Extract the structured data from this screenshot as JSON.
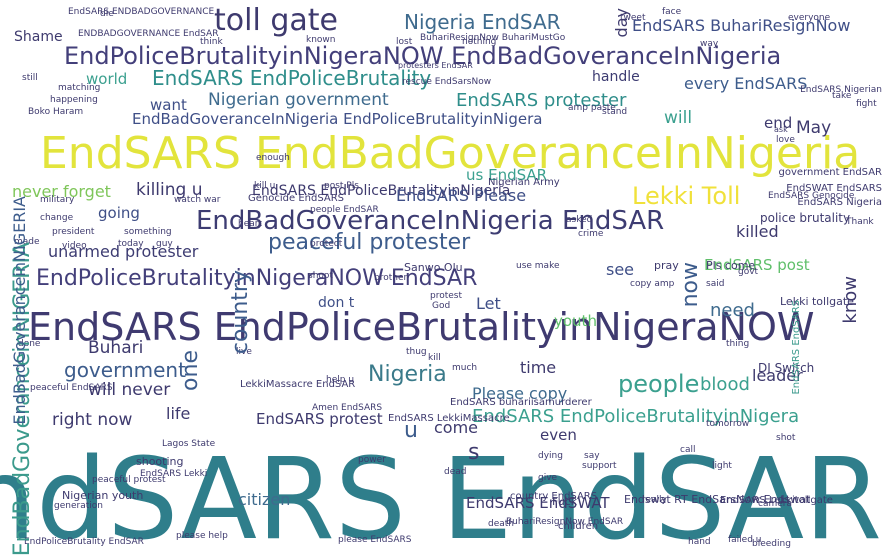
{
  "cloud": {
    "palette": {
      "dark": "#3e3a6e",
      "indigo": "#433f7a",
      "teal": "#2b7a87",
      "teal_light": "#3ba08f",
      "green": "#5fbf6a",
      "lime": "#b9dc3a",
      "yellow": "#e6e23a",
      "light": "#9fd5c5"
    },
    "words": [
      {
        "text": "EndSARS EndSAR",
        "color": "#2f7e8b",
        "vertical": false
      },
      {
        "text": "EndSARS EndBadGoveranceInNigeria",
        "color": "#e2e43c",
        "vertical": false
      },
      {
        "text": "EndSARS EndPoliceBrutalityinNigeraNOW",
        "color": "#3f3a70",
        "vertical": false
      },
      {
        "text": "EndPoliceBrutalityinNigeraNOW EndBadGoveranceInNigeria",
        "color": "#433f7a",
        "vertical": false
      },
      {
        "text": "EndBadGoveranceInNigeria EndSAR",
        "color": "#3d3c72",
        "vertical": false
      },
      {
        "text": "EndPoliceBrutalityinNigeraNOW EndSAR",
        "color": "#433f7a",
        "vertical": false
      },
      {
        "text": "toll gate",
        "color": "#3e3a6e",
        "vertical": false
      },
      {
        "text": "Nigeria EndSAR",
        "color": "#3f6b8e",
        "vertical": false
      },
      {
        "text": "EndSARS EndPoliceBrutality",
        "color": "#2f8e8b",
        "vertical": false
      },
      {
        "text": "EndSARS BuhariResignNow",
        "color": "#3f4f87",
        "vertical": false
      },
      {
        "text": "peaceful protester",
        "color": "#3d5c8c",
        "vertical": false
      },
      {
        "text": "Lekki Toll",
        "color": "#f0e13a",
        "vertical": false
      },
      {
        "text": "EndSARS protester",
        "color": "#2f8e8b",
        "vertical": false
      },
      {
        "text": "Nigerian government",
        "color": "#3f6b8e",
        "vertical": false
      },
      {
        "text": "EndBadGoveranceInNigeria EndPoliceBrutalityinNigera",
        "color": "#3f4f87",
        "vertical": false
      },
      {
        "text": "EndSARS EndPoliceBrutalityinNigeria",
        "color": "#3e3a6e",
        "vertical": false
      },
      {
        "text": "EndSARS EndPoliceBrutalityinNigera",
        "color": "#3ba08f",
        "vertical": false
      },
      {
        "text": "Nigeria",
        "color": "#3a7a8a",
        "vertical": false
      },
      {
        "text": "people",
        "color": "#3ba08f",
        "vertical": false
      },
      {
        "text": "government",
        "color": "#3d5c8c",
        "vertical": false
      },
      {
        "text": "will never",
        "color": "#3e3a6e",
        "vertical": false
      },
      {
        "text": "unarmed protester",
        "color": "#3d3c72",
        "vertical": false
      },
      {
        "text": "killing u",
        "color": "#3e3a6e",
        "vertical": false
      },
      {
        "text": "EndSARS Please",
        "color": "#3f4f87",
        "vertical": false
      },
      {
        "text": "Shame",
        "color": "#3e3a6e",
        "vertical": false
      },
      {
        "text": "world",
        "color": "#3ba08f",
        "vertical": false
      },
      {
        "text": "want",
        "color": "#3f4f87",
        "vertical": false
      },
      {
        "text": "handle",
        "color": "#3d3c72",
        "vertical": false
      },
      {
        "text": "every EndSARS",
        "color": "#3d5c8c",
        "vertical": false
      },
      {
        "text": "will",
        "color": "#3ba08f",
        "vertical": false
      },
      {
        "text": "end",
        "color": "#3e3a6e",
        "vertical": false
      },
      {
        "text": "May",
        "color": "#3e3a6e",
        "vertical": false
      },
      {
        "text": "never forget",
        "color": "#7fc65a",
        "vertical": false
      },
      {
        "text": "us EndSAR",
        "color": "#3ba08f",
        "vertical": false
      },
      {
        "text": "going",
        "color": "#3f4f87",
        "vertical": false
      },
      {
        "text": "killed",
        "color": "#3e3a6e",
        "vertical": false
      },
      {
        "text": "EndSARS post",
        "color": "#5fbf6a",
        "vertical": false
      },
      {
        "text": "see",
        "color": "#3f4f87",
        "vertical": false
      },
      {
        "text": "Let",
        "color": "#3f4f87",
        "vertical": false
      },
      {
        "text": "don t",
        "color": "#3f4f87",
        "vertical": false
      },
      {
        "text": "need",
        "color": "#3f6b8e",
        "vertical": false
      },
      {
        "text": "youth",
        "color": "#5fbf6a",
        "vertical": false
      },
      {
        "text": "Buhari",
        "color": "#3e3a6e",
        "vertical": false
      },
      {
        "text": "blood",
        "color": "#3ba08f",
        "vertical": false
      },
      {
        "text": "time",
        "color": "#3e3a6e",
        "vertical": false
      },
      {
        "text": "leader",
        "color": "#3e3a6e",
        "vertical": false
      },
      {
        "text": "Please copy",
        "color": "#3f6b8e",
        "vertical": false
      },
      {
        "text": "right now",
        "color": "#3e3a6e",
        "vertical": false
      },
      {
        "text": "life",
        "color": "#3e3a6e",
        "vertical": false
      },
      {
        "text": "EndSARS protest",
        "color": "#3e3a6e",
        "vertical": false
      },
      {
        "text": "come",
        "color": "#3e3a6e",
        "vertical": false
      },
      {
        "text": "even",
        "color": "#3e3a6e",
        "vertical": false
      },
      {
        "text": "citizen",
        "color": "#3f6b8e",
        "vertical": false
      },
      {
        "text": "EndSARS EndSWAT",
        "color": "#3e3a6e",
        "vertical": false
      },
      {
        "text": "DJ Switch",
        "color": "#3e3a6e",
        "vertical": false
      },
      {
        "text": "police brutality",
        "color": "#3e3a6e",
        "vertical": false
      },
      {
        "text": "pray",
        "color": "#3e3a6e",
        "vertical": false
      },
      {
        "text": "Pls come",
        "color": "#3e3a6e",
        "vertical": false
      },
      {
        "text": "EndSARS Nigeria",
        "color": "#3e3a6e",
        "vertical": false
      },
      {
        "text": "EndSWAT EndSARS",
        "color": "#3e3a6e",
        "vertical": false
      },
      {
        "text": "government EndSAR",
        "color": "#3e3a6e",
        "vertical": false
      },
      {
        "text": "Lekki tollgate",
        "color": "#3e3a6e",
        "vertical": false
      },
      {
        "text": "Sanwo Olu",
        "color": "#3e3a6e",
        "vertical": false
      },
      {
        "text": "Nigerian Army",
        "color": "#3e3a6e",
        "vertical": false
      },
      {
        "text": "Genocide EndSARS",
        "color": "#3e3a6e",
        "vertical": false
      },
      {
        "text": "Boko Haram",
        "color": "#3e3a6e",
        "vertical": false
      },
      {
        "text": "EndSARS Genocide",
        "color": "#3e3a6e",
        "vertical": false
      },
      {
        "text": "EndSARS Lekki",
        "color": "#3e3a6e",
        "vertical": false
      },
      {
        "text": "peaceful protest",
        "color": "#3e3a6e",
        "vertical": false
      },
      {
        "text": "LekkiMassacre EndSAR",
        "color": "#3e3a6e",
        "vertical": false
      },
      {
        "text": "EndSARS buhariisamurderer",
        "color": "#3e3a6e",
        "vertical": false
      },
      {
        "text": "EndSARS LekkiMassacre",
        "color": "#3e3a6e",
        "vertical": false
      },
      {
        "text": "Nigerian youth",
        "color": "#3e3a6e",
        "vertical": false
      },
      {
        "text": "shooting",
        "color": "#3e3a6e",
        "vertical": false
      },
      {
        "text": "country EndSARS",
        "color": "#3e3a6e",
        "vertical": false
      },
      {
        "text": "Fuck",
        "color": "#3e3a6e",
        "vertical": false
      },
      {
        "text": "Endswat RT EndSarsNow Endswat",
        "color": "#3e3a6e",
        "vertical": false
      },
      {
        "text": "EndSARS Lekkitollgate",
        "color": "#3e3a6e",
        "vertical": false
      },
      {
        "text": "BuhariResignNow EndSAR",
        "color": "#3e3a6e",
        "vertical": false
      },
      {
        "text": "EndPoliceBrutality EndSAR",
        "color": "#3e3a6e",
        "vertical": false
      },
      {
        "text": "please help",
        "color": "#3e3a6e",
        "vertical": false
      },
      {
        "text": "please EndSARS",
        "color": "#3e3a6e",
        "vertical": false
      },
      {
        "text": "failed u",
        "color": "#3e3a6e",
        "vertical": false
      },
      {
        "text": "hand",
        "color": "#3e3a6e",
        "vertical": false
      },
      {
        "text": "bleeding",
        "color": "#3e3a6e",
        "vertical": false
      },
      {
        "text": "children",
        "color": "#3e3a6e",
        "vertical": false
      },
      {
        "text": "death",
        "color": "#3e3a6e",
        "vertical": false
      },
      {
        "text": "support",
        "color": "#3e3a6e",
        "vertical": false
      },
      {
        "text": "dead",
        "color": "#3e3a6e",
        "vertical": false
      },
      {
        "text": "give",
        "color": "#3e3a6e",
        "vertical": false
      },
      {
        "text": "call",
        "color": "#3e3a6e",
        "vertical": false
      },
      {
        "text": "light",
        "color": "#3e3a6e",
        "vertical": false
      },
      {
        "text": "camera",
        "color": "#3e3a6e",
        "vertical": false
      },
      {
        "text": "everyone",
        "color": "#3e3a6e",
        "vertical": false
      },
      {
        "text": "face",
        "color": "#3e3a6e",
        "vertical": false
      },
      {
        "text": "tweet",
        "color": "#3e3a6e",
        "vertical": false
      },
      {
        "text": "EndSARS Nigerian",
        "color": "#3e3a6e",
        "vertical": false
      },
      {
        "text": "EndSARS ENDBADGOVERNANCE",
        "color": "#3e3a6e",
        "vertical": false
      },
      {
        "text": "ENDBADGOVERNANCE EndSAR",
        "color": "#3e3a6e",
        "vertical": false
      },
      {
        "text": "protesters EndSAR",
        "color": "#3e3a6e",
        "vertical": false
      },
      {
        "text": "rescue EndSarsNow",
        "color": "#3e3a6e",
        "vertical": false
      },
      {
        "text": "BuhariResignNow BuhariMustGo",
        "color": "#3e3a6e",
        "vertical": false
      },
      {
        "text": "amp paste",
        "color": "#3e3a6e",
        "vertical": false
      },
      {
        "text": "take",
        "color": "#3e3a6e",
        "vertical": false
      },
      {
        "text": "love",
        "color": "#3e3a6e",
        "vertical": false
      },
      {
        "text": "ask",
        "color": "#3e3a6e",
        "vertical": false
      },
      {
        "text": "enough",
        "color": "#3e3a6e",
        "vertical": false
      },
      {
        "text": "kill u",
        "color": "#3e3a6e",
        "vertical": false
      },
      {
        "text": "post Pls",
        "color": "#3e3a6e",
        "vertical": false
      },
      {
        "text": "people EndSAR",
        "color": "#3e3a6e",
        "vertical": false
      },
      {
        "text": "military",
        "color": "#3e3a6e",
        "vertical": false
      },
      {
        "text": "change",
        "color": "#3e3a6e",
        "vertical": false
      },
      {
        "text": "president",
        "color": "#3e3a6e",
        "vertical": false
      },
      {
        "text": "something",
        "color": "#3e3a6e",
        "vertical": false
      },
      {
        "text": "video",
        "color": "#3e3a6e",
        "vertical": false
      },
      {
        "text": "today",
        "color": "#3e3a6e",
        "vertical": false
      },
      {
        "text": "guy",
        "color": "#3e3a6e",
        "vertical": false
      },
      {
        "text": "heart",
        "color": "#3e3a6e",
        "vertical": false
      },
      {
        "text": "protect",
        "color": "#3e3a6e",
        "vertical": false
      },
      {
        "text": "shoot",
        "color": "#3e3a6e",
        "vertical": false
      },
      {
        "text": "brother",
        "color": "#3e3a6e",
        "vertical": false
      },
      {
        "text": "protest",
        "color": "#3e3a6e",
        "vertical": false
      },
      {
        "text": "God",
        "color": "#3e3a6e",
        "vertical": false
      },
      {
        "text": "copy amp",
        "color": "#3e3a6e",
        "vertical": false
      },
      {
        "text": "live",
        "color": "#3e3a6e",
        "vertical": false
      },
      {
        "text": "thing",
        "color": "#3e3a6e",
        "vertical": false
      },
      {
        "text": "kill",
        "color": "#3e3a6e",
        "vertical": false
      },
      {
        "text": "much",
        "color": "#3e3a6e",
        "vertical": false
      },
      {
        "text": "help u",
        "color": "#3e3a6e",
        "vertical": false
      },
      {
        "text": "done",
        "color": "#3e3a6e",
        "vertical": false
      },
      {
        "text": "peaceful EndSARS",
        "color": "#3e3a6e",
        "vertical": false
      },
      {
        "text": "Lagos State",
        "color": "#3e3a6e",
        "vertical": false
      },
      {
        "text": "power",
        "color": "#3e3a6e",
        "vertical": false
      },
      {
        "text": "dying",
        "color": "#3e3a6e",
        "vertical": false
      },
      {
        "text": "say",
        "color": "#3e3a6e",
        "vertical": false
      },
      {
        "text": "generation",
        "color": "#3e3a6e",
        "vertical": false
      },
      {
        "text": "made",
        "color": "#3e3a6e",
        "vertical": false
      },
      {
        "text": "way",
        "color": "#3e3a6e",
        "vertical": false
      },
      {
        "text": "die",
        "color": "#3e3a6e",
        "vertical": false
      },
      {
        "text": "think",
        "color": "#3e3a6e",
        "vertical": false
      },
      {
        "text": "known",
        "color": "#3e3a6e",
        "vertical": false
      },
      {
        "text": "lost",
        "color": "#3e3a6e",
        "vertical": false
      },
      {
        "text": "nothing",
        "color": "#3e3a6e",
        "vertical": false
      },
      {
        "text": "still",
        "color": "#3e3a6e",
        "vertical": false
      },
      {
        "text": "happening",
        "color": "#3e3a6e",
        "vertical": false
      },
      {
        "text": "matching",
        "color": "#3e3a6e",
        "vertical": false
      },
      {
        "text": "crime",
        "color": "#3e3a6e",
        "vertical": false
      },
      {
        "text": "said",
        "color": "#3e3a6e",
        "vertical": false
      },
      {
        "text": "govt",
        "color": "#3e3a6e",
        "vertical": false
      },
      {
        "text": "shot",
        "color": "#3e3a6e",
        "vertical": false
      },
      {
        "text": "really",
        "color": "#3e3a6e",
        "vertical": false
      },
      {
        "text": "Thank",
        "color": "#3e3a6e",
        "vertical": false
      },
      {
        "text": "fight",
        "color": "#3e3a6e",
        "vertical": false
      },
      {
        "text": "tomorrow",
        "color": "#3e3a6e",
        "vertical": false
      },
      {
        "text": "watch war",
        "color": "#3e3a6e",
        "vertical": false
      },
      {
        "text": "Amen EndSARS",
        "color": "#3e3a6e",
        "vertical": false
      },
      {
        "text": "stand",
        "color": "#3e3a6e",
        "vertical": false
      },
      {
        "text": "asked",
        "color": "#3e3a6e",
        "vertical": false
      },
      {
        "text": "use make",
        "color": "#3e3a6e",
        "vertical": false
      },
      {
        "text": "thug",
        "color": "#3e3a6e",
        "vertical": false
      },
      {
        "text": "EndBadGoveranceinNIGERIA",
        "color": "#3b9a8c",
        "vertical": true
      },
      {
        "text": "EndBadGoveranceinNIGERIA",
        "color": "#3d5c8c",
        "vertical": true
      },
      {
        "text": "EndSARS EndSARS",
        "color": "#3b9a8c",
        "vertical": true
      },
      {
        "text": "country",
        "color": "#3d5c8c",
        "vertical": true
      },
      {
        "text": "now",
        "color": "#3d5c8c",
        "vertical": true
      },
      {
        "text": "one",
        "color": "#3d5c8c",
        "vertical": true
      },
      {
        "text": "know",
        "color": "#3e3a6e",
        "vertical": true
      },
      {
        "text": "day",
        "color": "#3e3a6e",
        "vertical": true
      },
      {
        "text": "u",
        "color": "#3d5c8c",
        "vertical": false
      },
      {
        "text": "s",
        "color": "#3e3a6e",
        "vertical": false
      }
    ]
  }
}
